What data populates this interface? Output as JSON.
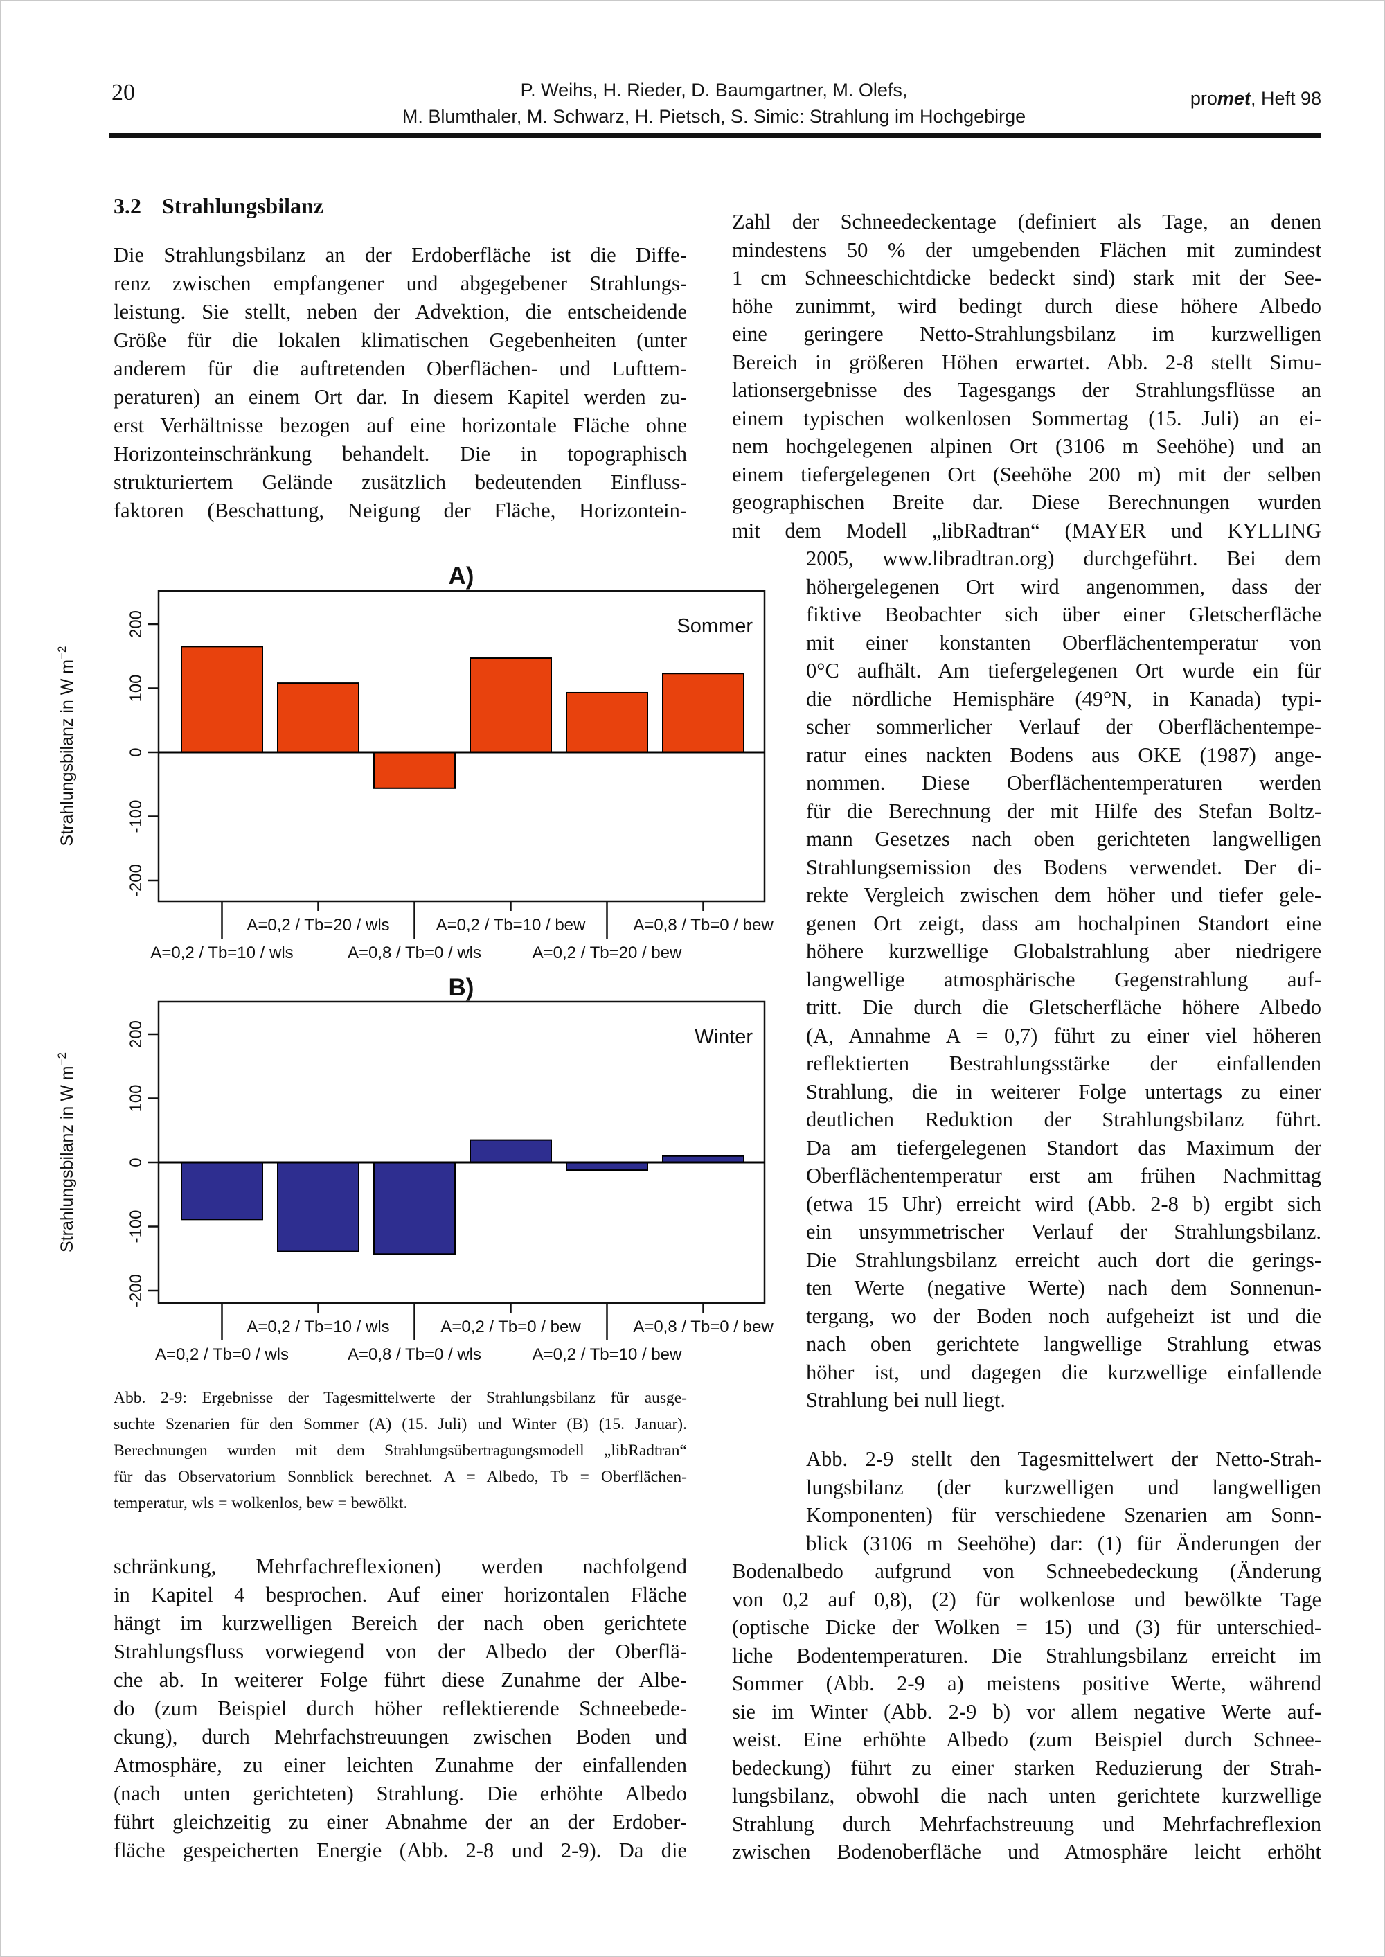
{
  "header": {
    "page_number": "20",
    "authors_line1": "P. Weihs, H. Rieder, D. Baumgartner, M. Olefs,",
    "authors_line2": "M. Blumthaler, M. Schwarz, H. Pietsch, S. Simic: Strahlung im Hochgebirge",
    "journal_pre": "pro",
    "journal_bold": "met",
    "journal_rest": ", Heft 98"
  },
  "section": {
    "number": "3.2",
    "title": "Strahlungsbilanz"
  },
  "left_column": {
    "paragraph1_lines": [
      "Die Strahlungsbilanz an der Erdoberfläche ist die Diffe-",
      "renz zwischen empfangener und abgegebener Strahlungs-",
      "leistung. Sie stellt, neben der Advektion, die entscheidende",
      "Größe für die lokalen klimatischen Gegebenheiten (unter",
      "anderem für die auftretenden Oberflächen- und Lufttem-",
      "peraturen) an einem Ort dar. In diesem Kapitel werden zu-",
      "erst Verhältnisse bezogen auf eine horizontale Fläche ohne",
      "Horizonteinschränkung behandelt. Die in topographisch",
      "strukturiertem Gelände zusätzlich bedeutenden Einfluss-",
      "faktoren (Beschattung, Neigung der Fläche, Horizontein-"
    ],
    "paragraph2_lines": [
      "schränkung, Mehrfachreflexionen) werden nachfolgend",
      "in Kapitel 4 besprochen. Auf einer horizontalen Fläche",
      "hängt im kurzwelligen Bereich der nach oben gerichtete",
      "Strahlungsfluss vorwiegend von der Albedo der Oberflä-",
      "che ab. In weiterer Folge führt diese Zunahme der Albe-",
      "do (zum Beispiel durch höher reflektierende Schneebede-",
      "ckung), durch Mehrfachstreuungen zwischen Boden und",
      "Atmosphäre, zu einer leichten Zunahme der einfallenden",
      "(nach unten gerichteten) Strahlung. Die erhöhte Albedo",
      "führt gleichzeitig zu einer Abnahme der an der Erdober-",
      "fläche gespeicherten Energie (Abb. 2-8 und 2-9). Da die"
    ]
  },
  "figure": {
    "caption_lines": [
      "Abb. 2-9: Ergebnisse der Tagesmittelwerte der Strahlungsbilanz für ausge-",
      "suchte Szenarien für den Sommer (A) (15. Juli) und Winter (B) (15. Januar).",
      "Berechnungen wurden mit dem Strahlungsübertragungsmodell „libRadtran“",
      "für das Observatorium Sonnblick berechnet. A = Albedo, Tb = Oberflächen-",
      "temperatur, wls = wolkenlos, bew = bewölkt."
    ]
  },
  "right_column": {
    "segment1_lines": [
      "Zahl der Schneedeckentage (definiert als Tage, an denen",
      "mindestens 50 % der umgebenden Flächen mit zumindest",
      "1 cm Schneeschichtdicke bedeckt sind) stark mit der See-",
      "höhe zunimmt, wird bedingt durch diese höhere Albedo",
      "eine geringere Netto-Strahlungsbilanz im kurzwelligen",
      "Bereich in größeren Höhen erwartet. Abb. 2-8 stellt Simu-",
      "lationsergebnisse des Tagesgangs der Strahlungsflüsse an",
      "einem typischen wolkenlosen Sommertag (15. Juli) an ei-",
      "nem hochgelegenen alpinen Ort (3106 m Seehöhe) und an",
      "einem tiefergelegenen Ort (Seehöhe 200 m) mit der selben",
      "geographischen Breite dar. Diese Berechnungen wurden",
      "mit dem Modell „libRadtran“ (MAYER und KYLLING"
    ],
    "segment2_lines": [
      "2005, www.libradtran.org) durchgeführt. Bei dem",
      "höhergelegenen Ort wird angenommen, dass der",
      "fiktive Beobachter sich über einer Gletscherfläche",
      "mit einer konstanten Oberflächentemperatur von",
      "0°C aufhält. Am tiefergelegenen Ort wurde ein für",
      "die nördliche Hemisphäre (49°N, in Kanada) typi-",
      "scher sommerlicher Verlauf der Oberflächentempe-",
      "ratur eines nackten Bodens aus OKE (1987) ange-",
      "nommen. Diese Oberflächentemperaturen werden",
      "für die Berechnung der mit Hilfe des Stefan Boltz-",
      "mann Gesetzes nach oben gerichteten langwelligen",
      "Strahlungsemission des Bodens verwendet. Der di-",
      "rekte Vergleich zwischen dem höher und tiefer gele-",
      "genen Ort zeigt, dass am hochalpinen Standort eine",
      "höhere kurzwellige Globalstrahlung aber niedrigere",
      "langwellige atmosphärische Gegenstrahlung auf-",
      "tritt. Die durch die Gletscherfläche höhere Albedo",
      "(A, Annahme A = 0,7) führt zu einer viel höheren",
      "reflektierten Bestrahlungsstärke der einfallenden",
      "Strahlung, die in weiterer Folge untertags zu einer",
      "deutlichen Reduktion der Strahlungsbilanz führt.",
      "Da am tiefergelegenen Standort das Maximum der",
      "Oberflächentemperatur erst am frühen Nachmittag",
      "(etwa 15 Uhr) erreicht wird (Abb. 2-8 b) ergibt sich",
      "ein unsymmetrischer Verlauf der Strahlungsbilanz.",
      "Die Strahlungsbilanz erreicht auch dort die gerings-",
      "ten Werte (negative Werte) nach dem Sonnenun-",
      "tergang, wo der Boden noch aufgeheizt ist und die",
      "nach oben gerichtete langwellige Strahlung etwas",
      "höher ist, und dagegen die kurzwellige einfallende",
      "Strahlung bei null liegt."
    ],
    "segment2b_lines": [
      "Abb. 2-9 stellt den Tagesmittelwert der Netto-Strah-",
      "lungsbilanz (der kurzwelligen und langwelligen",
      "Komponenten) für verschiedene Szenarien am Sonn-",
      "blick (3106 m Seehöhe) dar: (1) für Änderungen der"
    ],
    "segment3_lines": [
      "Bodenalbedo aufgrund von Schneebedeckung (Änderung",
      "von 0,2 auf 0,8), (2) für wolkenlose und bewölkte Tage",
      "(optische Dicke der Wolken = 15) und (3) für unterschied-",
      "liche Bodentemperaturen. Die Strahlungsbilanz erreicht im",
      "Sommer (Abb. 2-9 a) meistens positive Werte, während",
      "sie im Winter (Abb. 2-9 b) vor allem negative Werte auf-",
      "weist. Eine erhöhte Albedo (zum Beispiel durch Schnee-",
      "bedeckung) führt zu einer starken Reduzierung der Strah-",
      "lungsbilanz, obwohl die nach unten gerichtete kurzwellige",
      "Strahlung durch Mehrfachstreuung und Mehrfachreflexion",
      "zwischen Bodenoberfläche und Atmosphäre leicht erhöht"
    ]
  },
  "chart_data": [
    {
      "id": "A",
      "type": "bar",
      "title": "A)",
      "corner_label": "Sommer",
      "ylabel": "Strahlungsbilanz in W m",
      "ylabel_sup": "−2",
      "xlabel": "",
      "categories": [
        "A=0,2 / Tb=10 / wls",
        "A=0,2 / Tb=20 / wls",
        "A=0,8 / Tb=0 / wls",
        "A=0,2 / Tb=10 / bew",
        "A=0,2 / Tb=20 / bew",
        "A=0,8 / Tb=0 / bew"
      ],
      "values": [
        165,
        108,
        -56,
        147,
        93,
        123
      ],
      "bar_color": "#e8420d",
      "ylim": [
        -245,
        245
      ],
      "yticks": [
        200,
        100,
        0,
        -100,
        -200
      ],
      "grid": "off",
      "legend": "none"
    },
    {
      "id": "B",
      "type": "bar",
      "title": "B)",
      "corner_label": "Winter",
      "ylabel": "Strahlungsbilanz in W m",
      "ylabel_sup": "−2",
      "xlabel": "",
      "categories": [
        "A=0,2 / Tb=0 / wls",
        "A=0,2 / Tb=10 / wls",
        "A=0,8 / Tb=0 / wls",
        "A=0,2 / Tb=0 / bew",
        "A=0,2 / Tb=10 / bew",
        "A=0,8 / Tb=0 / bew"
      ],
      "values": [
        -89,
        -139,
        -143,
        35,
        -12,
        10
      ],
      "bar_color": "#2e2e90",
      "ylim": [
        -245,
        245
      ],
      "yticks": [
        200,
        100,
        0,
        -100,
        -200
      ],
      "grid": "off",
      "legend": "none"
    }
  ]
}
